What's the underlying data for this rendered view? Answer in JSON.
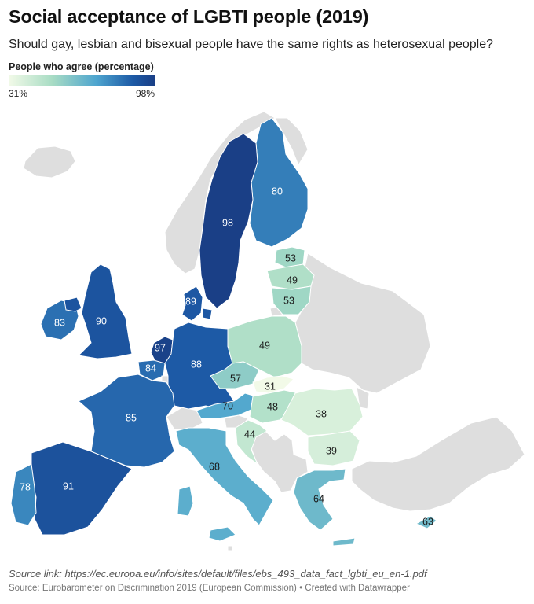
{
  "title": "Social acceptance of LGBTI people (2019)",
  "subtitle": "Should gay, lesbian and bisexual people have the same rights as heterosexual people?",
  "legend": {
    "title": "People who agree (percentage)",
    "min_label": "31%",
    "max_label": "98%",
    "min": 31,
    "max": 98
  },
  "colors": {
    "no_data": "#dedede",
    "low": "#f2fae8",
    "high": "#1a3f86"
  },
  "countries": [
    {
      "id": "FI",
      "value": 80
    },
    {
      "id": "SE",
      "value": 98
    },
    {
      "id": "DK",
      "value": 89
    },
    {
      "id": "EE",
      "value": 53
    },
    {
      "id": "LV",
      "value": 49
    },
    {
      "id": "LT",
      "value": 53
    },
    {
      "id": "IE",
      "value": 83
    },
    {
      "id": "UK",
      "value": 90
    },
    {
      "id": "NL",
      "value": 97
    },
    {
      "id": "BE",
      "value": 84
    },
    {
      "id": "LU",
      "value": null
    },
    {
      "id": "DE",
      "value": 88
    },
    {
      "id": "PL",
      "value": 49
    },
    {
      "id": "CZ",
      "value": 57
    },
    {
      "id": "SK",
      "value": 31
    },
    {
      "id": "AT",
      "value": 70
    },
    {
      "id": "HU",
      "value": 48
    },
    {
      "id": "SI",
      "value": null
    },
    {
      "id": "HR",
      "value": 44
    },
    {
      "id": "RO",
      "value": 38
    },
    {
      "id": "BG",
      "value": 39
    },
    {
      "id": "FR",
      "value": 85
    },
    {
      "id": "ES",
      "value": 91
    },
    {
      "id": "PT",
      "value": 78
    },
    {
      "id": "IT",
      "value": 68
    },
    {
      "id": "GR",
      "value": 64
    },
    {
      "id": "CY",
      "value": 63
    },
    {
      "id": "MT",
      "value": null
    }
  ],
  "footer": {
    "source_link": "Source link: https://ec.europa.eu/info/sites/default/files/ebs_493_data_fact_lgbti_eu_en-1.pdf",
    "source": "Source: Eurobarometer on Discrimination 2019 (European Commission) • Created with Datawrapper"
  }
}
